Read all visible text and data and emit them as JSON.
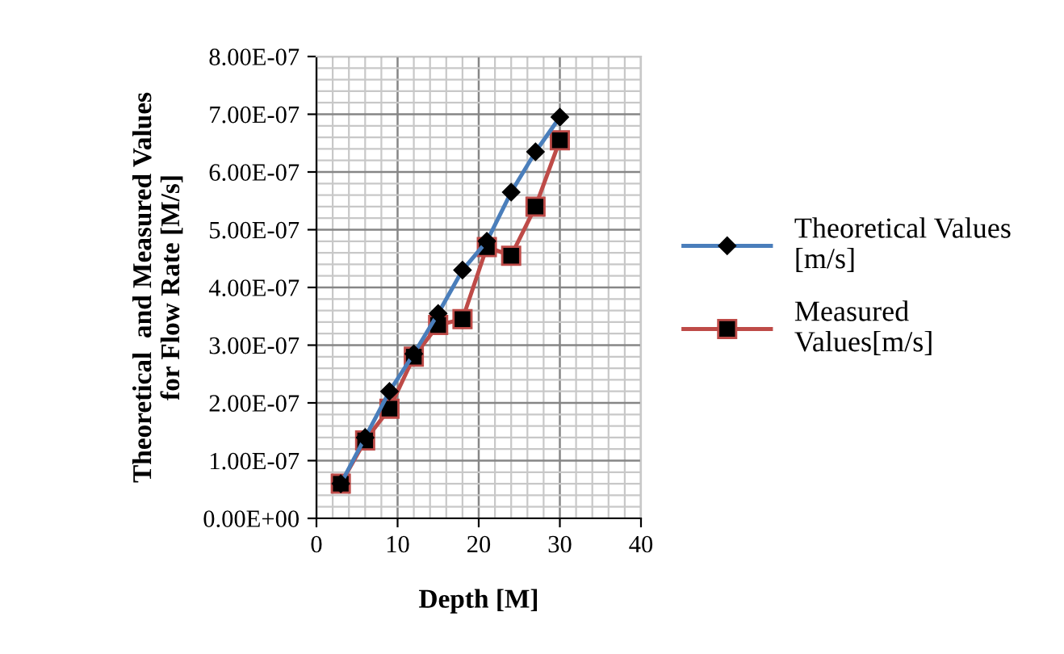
{
  "chart_data": {
    "type": "line",
    "xlabel": "Depth [M]",
    "ylabel": "Theoretical  and Measured Values\nfor Flow Rate [M/s]",
    "x": [
      3,
      6,
      9,
      12,
      15,
      18,
      21,
      24,
      27,
      30
    ],
    "series": [
      {
        "name": "Theoretical Values\n[m/s]",
        "color": "#4a7ebb",
        "marker": "diamond",
        "values": [
          6e-08,
          1.4e-07,
          2.2e-07,
          2.85e-07,
          3.55e-07,
          4.3e-07,
          4.8e-07,
          5.65e-07,
          6.35e-07,
          6.95e-07
        ]
      },
      {
        "name": "Measured\nValues[m/s]",
        "color": "#be4b48",
        "marker": "square",
        "values": [
          6e-08,
          1.35e-07,
          1.9e-07,
          2.8e-07,
          3.35e-07,
          3.45e-07,
          4.7e-07,
          4.55e-07,
          5.4e-07,
          6.55e-07
        ]
      }
    ],
    "xlim": [
      0,
      40
    ],
    "xticks": [
      0,
      10,
      20,
      30,
      40
    ],
    "ylim": [
      0,
      8e-07
    ],
    "yticks": [
      {
        "value": 0,
        "label": "0.00E+00"
      },
      {
        "value": 1e-07,
        "label": "1.00E-07"
      },
      {
        "value": 2e-07,
        "label": "2.00E-07"
      },
      {
        "value": 3e-07,
        "label": "3.00E-07"
      },
      {
        "value": 4e-07,
        "label": "4.00E-07"
      },
      {
        "value": 5e-07,
        "label": "5.00E-07"
      },
      {
        "value": 6e-07,
        "label": "6.00E-07"
      },
      {
        "value": 7e-07,
        "label": "7.00E-07"
      },
      {
        "value": 8e-07,
        "label": "8.00E-07"
      }
    ],
    "grid": true,
    "legend": "right",
    "line_style": "solid"
  }
}
